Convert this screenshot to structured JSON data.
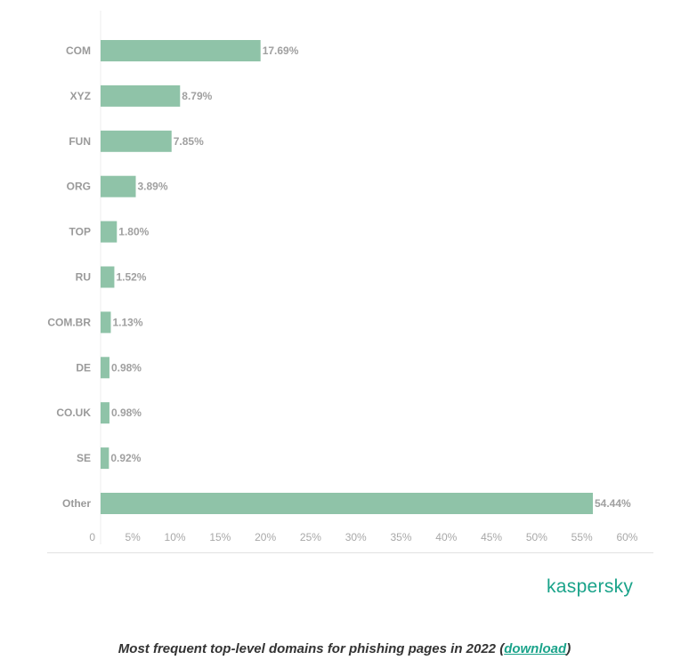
{
  "chart_data": {
    "type": "bar",
    "orientation": "horizontal",
    "categories": [
      "COM",
      "XYZ",
      "FUN",
      "ORG",
      "TOP",
      "RU",
      "COM.BR",
      "DE",
      "CO.UK",
      "SE",
      "Other"
    ],
    "values": [
      17.69,
      8.79,
      7.85,
      3.89,
      1.8,
      1.52,
      1.13,
      0.98,
      0.98,
      0.92,
      54.44
    ],
    "value_labels": [
      "17.69%",
      "8.79%",
      "7.85%",
      "3.89%",
      "1.80%",
      "1.52%",
      "1.13%",
      "0.98%",
      "0.98%",
      "0.92%",
      "54.44%"
    ],
    "xlim": [
      0,
      60
    ],
    "x_ticks": [
      0,
      5,
      10,
      15,
      20,
      25,
      30,
      35,
      40,
      45,
      50,
      55,
      60
    ],
    "x_tick_labels": [
      "0",
      "5%",
      "10%",
      "15%",
      "20%",
      "25%",
      "30%",
      "35%",
      "40%",
      "45%",
      "50%",
      "55%",
      "60%"
    ],
    "bar_color": "#8fc3a8",
    "grid": false
  },
  "logo": "kaspersky",
  "caption": {
    "text": "Most frequent top-level domains for phishing pages in 2022 (",
    "link": "download",
    "end": ")"
  },
  "colors": {
    "accent": "#1aa38a"
  }
}
